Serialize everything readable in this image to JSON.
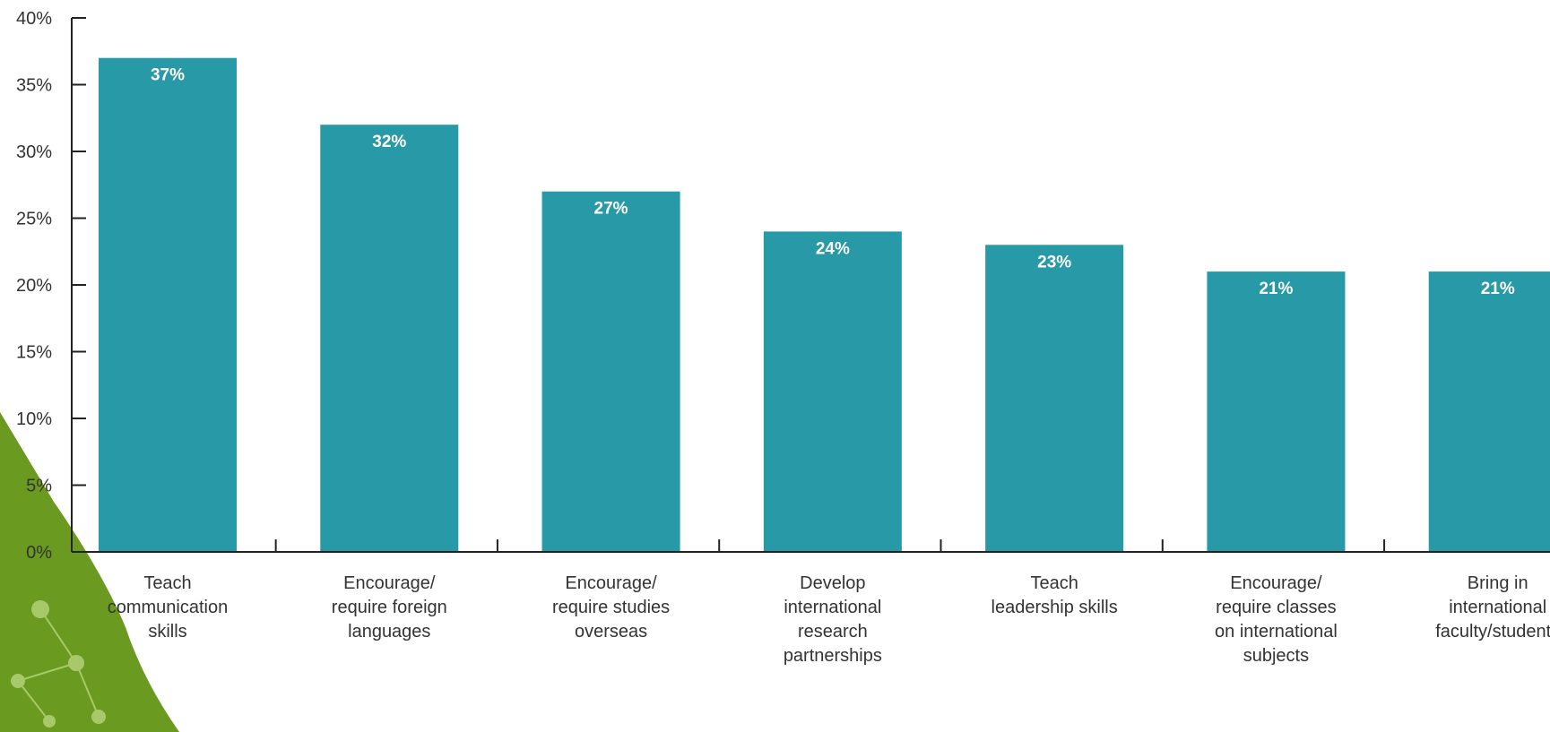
{
  "chart_data": {
    "type": "bar",
    "categories": [
      [
        "Teach",
        "communication",
        "skills"
      ],
      [
        "Encourage/",
        "require foreign",
        "languages"
      ],
      [
        "Encourage/",
        "require studies",
        "overseas"
      ],
      [
        "Develop",
        "international",
        "research",
        "partnerships"
      ],
      [
        "Teach",
        "leadership skills"
      ],
      [
        "Encourage/",
        "require classes",
        "on international",
        "subjects"
      ],
      [
        "Bring in",
        "international",
        "faculty/students"
      ]
    ],
    "values": [
      37,
      32,
      27,
      24,
      23,
      21,
      21
    ],
    "data_labels": [
      "37%",
      "32%",
      "27%",
      "24%",
      "23%",
      "21%",
      "21%"
    ],
    "y_ticks": [
      0,
      5,
      10,
      15,
      20,
      25,
      30,
      35,
      40
    ],
    "y_tick_labels": [
      "0%",
      "5%",
      "10%",
      "15%",
      "20%",
      "25%",
      "30%",
      "35%",
      "40%"
    ],
    "ylim": [
      0,
      40
    ],
    "title": "",
    "xlabel": "",
    "ylabel": "",
    "grid": false,
    "colors": {
      "bar": "#2799a7",
      "axis": "#222222",
      "decor": "#6a9a1f"
    }
  }
}
